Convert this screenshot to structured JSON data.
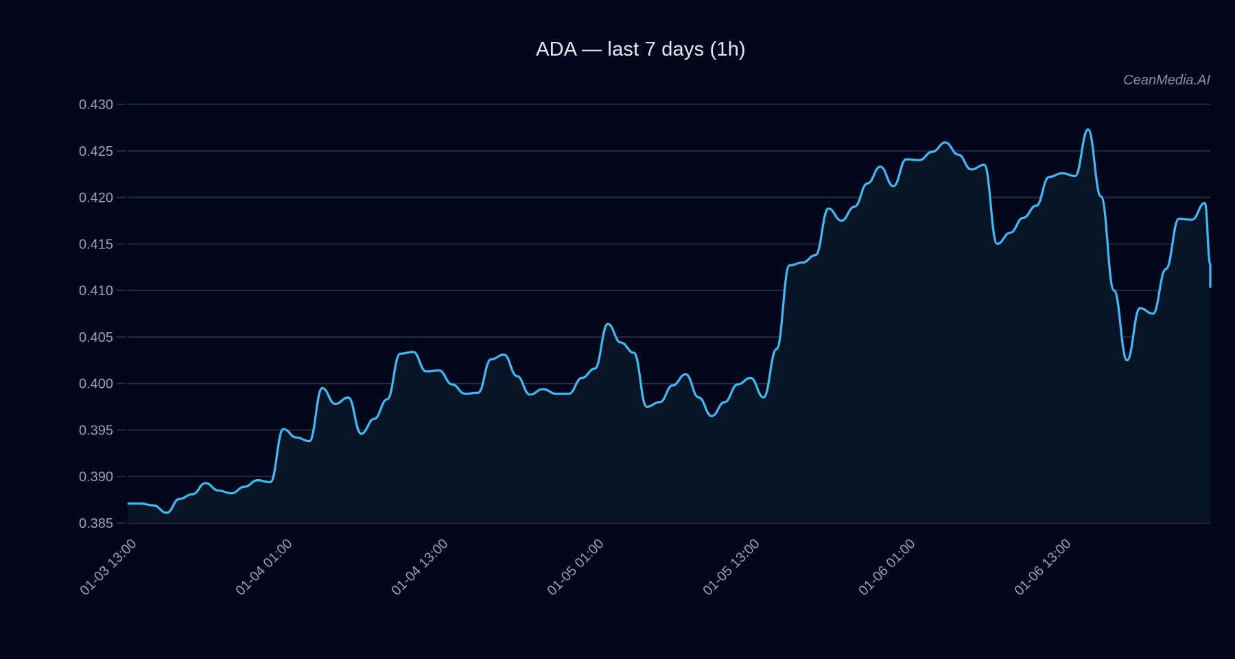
{
  "title": "ADA — last 7 days (1h)",
  "watermark": "CeanMedia.AI",
  "colors": {
    "background": "#02061a",
    "line": "#38bdf8",
    "fill": "#061426",
    "grid": "#2b3444",
    "text": "#9aa1ae"
  },
  "chart_data": {
    "type": "area",
    "title": "ADA — last 7 days (1h)",
    "xlabel": "",
    "ylabel": "",
    "ylim": [
      0.385,
      0.43
    ],
    "grid": true,
    "legend": null,
    "y_ticks": [
      "0.385",
      "0.390",
      "0.395",
      "0.400",
      "0.405",
      "0.410",
      "0.415",
      "0.420",
      "0.425",
      "0.430"
    ],
    "x_ticks": [
      "01-03 13:00",
      "01-04 01:00",
      "01-04 13:00",
      "01-05 01:00",
      "01-05 13:00",
      "01-06 01:00",
      "01-06 13:00"
    ],
    "x_tick_hours": [
      0,
      12,
      24,
      36,
      48,
      60,
      72
    ],
    "x_start": "01-03 13:00",
    "interval": "1h",
    "series": [
      {
        "name": "ADA",
        "values": [
          0.3871,
          0.3871,
          0.3869,
          0.3861,
          0.3876,
          0.3881,
          0.3893,
          0.3885,
          0.3882,
          0.3889,
          0.3896,
          0.3894,
          0.3951,
          0.3942,
          0.3938,
          0.3995,
          0.3978,
          0.3985,
          0.3946,
          0.3962,
          0.3983,
          0.4032,
          0.4034,
          0.4013,
          0.4014,
          0.3999,
          0.3989,
          0.399,
          0.4026,
          0.4031,
          0.4008,
          0.3988,
          0.3994,
          0.3989,
          0.3989,
          0.4006,
          0.4016,
          0.4064,
          0.4044,
          0.4033,
          0.3975,
          0.398,
          0.3998,
          0.401,
          0.3985,
          0.3965,
          0.398,
          0.3999,
          0.4006,
          0.3985,
          0.4037,
          0.4127,
          0.413,
          0.4138,
          0.4188,
          0.4175,
          0.419,
          0.4215,
          0.4233,
          0.4212,
          0.4241,
          0.424,
          0.4249,
          0.4259,
          0.4246,
          0.423,
          0.4235,
          0.415,
          0.4162,
          0.4178,
          0.4191,
          0.4222,
          0.4226,
          0.4223,
          0.4273,
          0.4201,
          0.41,
          0.4025,
          0.4081,
          0.4075,
          0.4123,
          0.4177,
          0.4176,
          0.4194,
          0.4128,
          0.4103
        ]
      }
    ]
  }
}
